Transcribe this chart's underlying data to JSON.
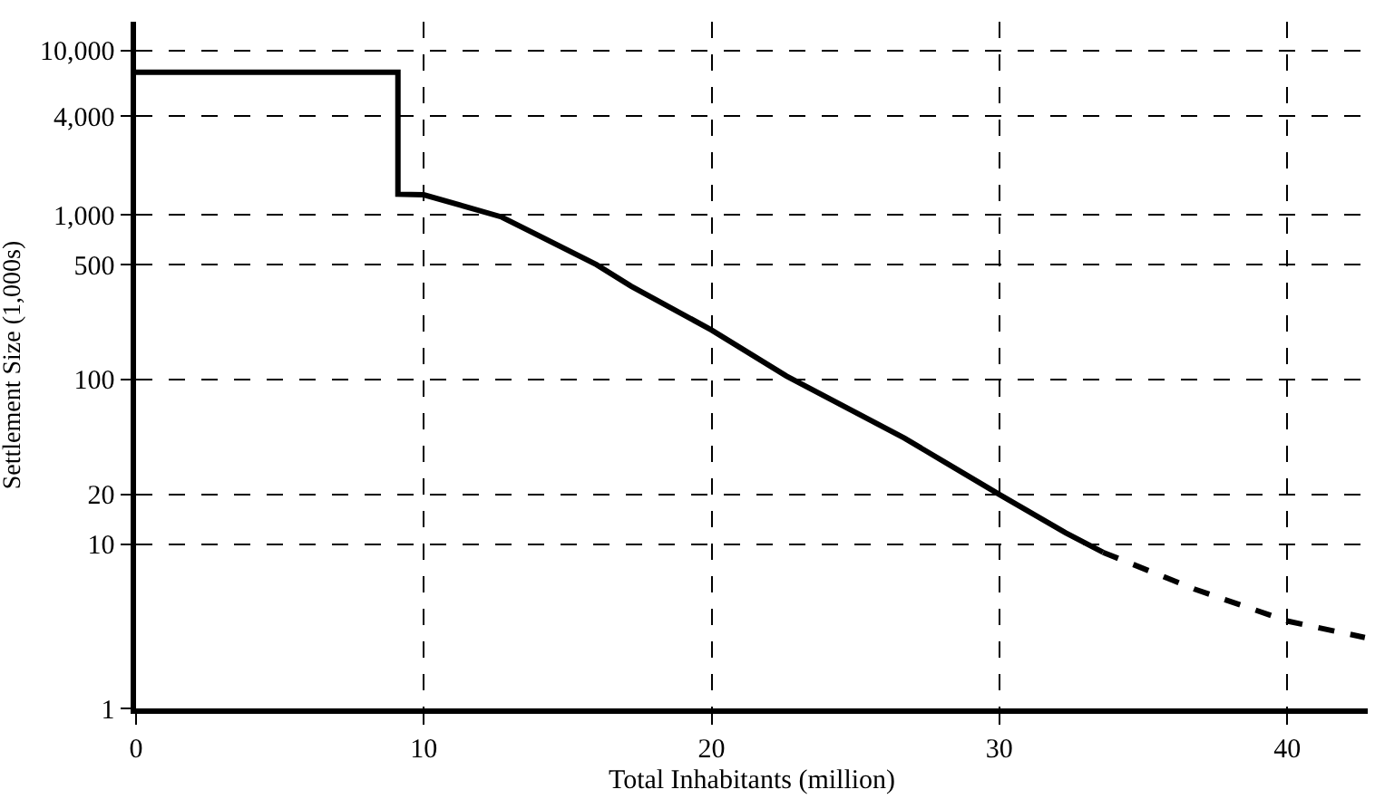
{
  "chart_data": {
    "type": "line",
    "xlabel": "Total Inhabitants (million)",
    "ylabel": "Settlement Size (1,000s)",
    "log": "y",
    "grid": true,
    "legend": false,
    "xlim": [
      0,
      42.8
    ],
    "xticks": [
      0,
      10,
      20,
      30,
      40
    ],
    "ylim": [
      1,
      15000
    ],
    "yticks": [
      1,
      10,
      20,
      100,
      500,
      {
        "value": 1000,
        "label": "1,000"
      },
      {
        "value": 4000,
        "label": "4,000"
      },
      {
        "value": 10000,
        "label": "10,000"
      }
    ],
    "series": [
      {
        "color": "#000000",
        "line_style": "solid",
        "x": [
          0,
          9.1,
          9.1,
          10,
          12.7,
          16,
          17.2,
          20,
          22.6,
          26.7,
          30,
          32.3,
          33.6
        ],
        "values": [
          7400,
          7400,
          1340,
          1330,
          975,
          500,
          370,
          200,
          105,
          44,
          20,
          11.7,
          8.9
        ]
      },
      {
        "color": "#000000",
        "line_style": "dashed",
        "x": [
          33.6,
          36.8,
          40,
          42.7
        ],
        "values": [
          8.9,
          5.3,
          3.4,
          2.7
        ]
      }
    ]
  }
}
